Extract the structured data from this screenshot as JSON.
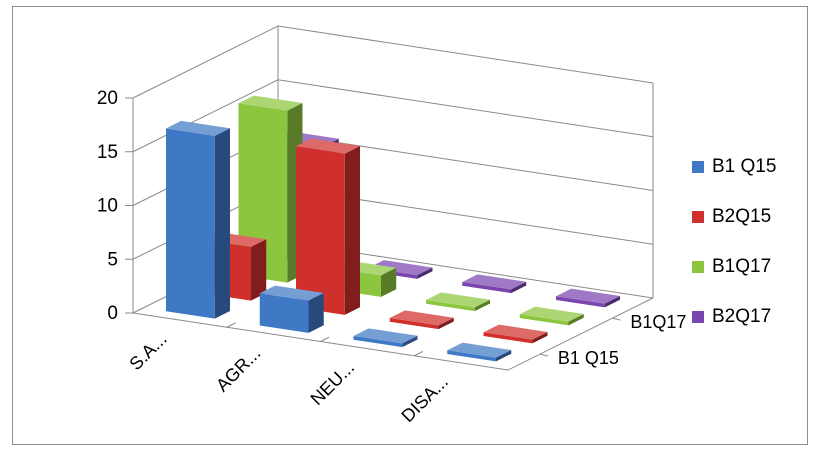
{
  "chart_data": {
    "type": "bar",
    "subtype": "3d-column",
    "categories": [
      "S.A...",
      "AGR...",
      "NEU...",
      "DISA..."
    ],
    "depth_categories": [
      "B1 Q15",
      "B1Q17"
    ],
    "series": [
      {
        "name": "B1 Q15",
        "color": "#3f78c4",
        "values": [
          17,
          3,
          0,
          0
        ]
      },
      {
        "name": "B2Q15",
        "color": "#d0302c",
        "values": [
          5,
          15,
          0,
          0
        ]
      },
      {
        "name": "B1Q17",
        "color": "#8cc63e",
        "values": [
          16,
          2,
          0,
          0
        ]
      },
      {
        "name": "B2Q17",
        "color": "#7b45b0",
        "values": [
          11,
          0,
          0,
          0
        ]
      }
    ],
    "ylim": [
      0,
      20
    ],
    "yticks": [
      "0",
      "5",
      "10",
      "15",
      "20"
    ],
    "grid": true,
    "legend_position": "right",
    "title": "",
    "xlabel": "",
    "ylabel": ""
  }
}
